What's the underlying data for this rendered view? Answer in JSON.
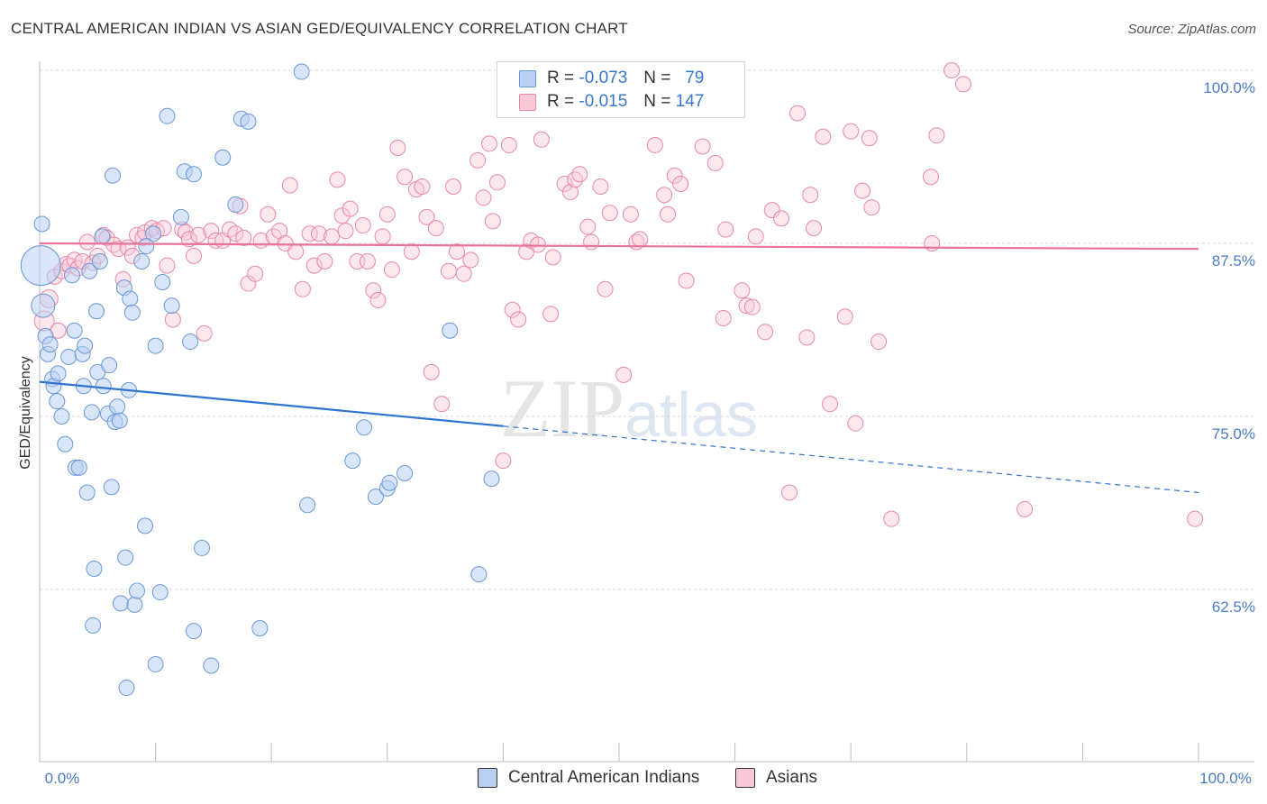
{
  "title": "CENTRAL AMERICAN INDIAN VS ASIAN GED/EQUIVALENCY CORRELATION CHART",
  "source": "Source: ZipAtlas.com",
  "watermark": {
    "main": "ZIP",
    "sub": "atlas"
  },
  "legend": {
    "rows": [
      {
        "r_label": "R =",
        "r_value": "-0.073",
        "n_label": "N =",
        "n_value": "79"
      },
      {
        "r_label": "R =",
        "r_value": "-0.015",
        "n_label": "N =",
        "n_value": "147"
      }
    ]
  },
  "bottom_legend": [
    "Central American Indians",
    "Asians"
  ],
  "colors": {
    "blue": "#4a86d8",
    "blue_fill": "#b9d0f3",
    "pink": "#e8749a",
    "pink_fill": "#f9c9d8",
    "tick": "#4a7cc9"
  },
  "chart_data": {
    "type": "scatter",
    "title": "CENTRAL AMERICAN INDIAN VS ASIAN GED/EQUIVALENCY CORRELATION CHART",
    "xlabel": "",
    "ylabel": "GED/Equivalency",
    "xlim": [
      0,
      100
    ],
    "ylim": [
      49.5,
      101.5
    ],
    "x_tick_labels": [
      "0.0%",
      "100.0%"
    ],
    "y_ticks": [
      62.5,
      75.0,
      87.5,
      100.0
    ],
    "y_tick_labels": [
      "62.5%",
      "75.0%",
      "87.5%",
      "100.0%"
    ],
    "grid": true,
    "series": [
      {
        "name": "Central American Indians",
        "r": -0.073,
        "n": 79,
        "trend": {
          "x0": 0,
          "y0": 77.5,
          "x1": 100,
          "y1": 69.5,
          "solid_until": 40
        },
        "points": [
          [
            0.1,
            85.9
          ],
          [
            0.3,
            83.0
          ],
          [
            0.5,
            80.8
          ],
          [
            0.7,
            79.5
          ],
          [
            0.9,
            80.2
          ],
          [
            1.1,
            77.7
          ],
          [
            1.2,
            77.2
          ],
          [
            1.6,
            78.1
          ],
          [
            1.5,
            76.1
          ],
          [
            1.9,
            75.0
          ],
          [
            2.2,
            73.0
          ],
          [
            2.5,
            79.3
          ],
          [
            2.8,
            85.2
          ],
          [
            3.0,
            81.2
          ],
          [
            3.1,
            71.3
          ],
          [
            3.4,
            71.3
          ],
          [
            3.7,
            79.5
          ],
          [
            3.8,
            77.2
          ],
          [
            3.9,
            80.1
          ],
          [
            4.1,
            69.5
          ],
          [
            4.3,
            85.5
          ],
          [
            4.5,
            75.3
          ],
          [
            4.6,
            59.9
          ],
          [
            4.7,
            64.0
          ],
          [
            4.9,
            82.6
          ],
          [
            5.0,
            78.2
          ],
          [
            5.2,
            86.2
          ],
          [
            5.4,
            88.0
          ],
          [
            5.5,
            77.2
          ],
          [
            5.9,
            75.2
          ],
          [
            6.0,
            78.7
          ],
          [
            6.2,
            69.9
          ],
          [
            6.5,
            74.6
          ],
          [
            6.7,
            75.7
          ],
          [
            6.9,
            74.7
          ],
          [
            7.0,
            61.5
          ],
          [
            7.3,
            84.3
          ],
          [
            7.4,
            64.8
          ],
          [
            7.5,
            55.4
          ],
          [
            7.7,
            76.9
          ],
          [
            7.8,
            83.5
          ],
          [
            8.0,
            82.5
          ],
          [
            8.2,
            61.4
          ],
          [
            8.4,
            62.4
          ],
          [
            8.8,
            86.2
          ],
          [
            9.1,
            67.1
          ],
          [
            9.8,
            88.2
          ],
          [
            10.0,
            80.1
          ],
          [
            10.0,
            57.1
          ],
          [
            10.4,
            62.3
          ],
          [
            10.6,
            84.7
          ],
          [
            11.0,
            96.7
          ],
          [
            11.4,
            83.0
          ],
          [
            12.2,
            89.4
          ],
          [
            12.5,
            92.7
          ],
          [
            13.0,
            80.4
          ],
          [
            13.3,
            92.5
          ],
          [
            14.0,
            65.5
          ],
          [
            14.8,
            57.0
          ],
          [
            15.8,
            93.7
          ],
          [
            16.9,
            90.3
          ],
          [
            17.4,
            96.5
          ],
          [
            18.0,
            96.3
          ],
          [
            19.0,
            59.7
          ],
          [
            22.6,
            99.9
          ],
          [
            23.1,
            68.6
          ],
          [
            27.0,
            71.8
          ],
          [
            28.0,
            74.2
          ],
          [
            29.0,
            69.2
          ],
          [
            30.0,
            69.8
          ],
          [
            30.2,
            70.2
          ],
          [
            31.5,
            70.9
          ],
          [
            35.4,
            81.2
          ],
          [
            37.9,
            63.6
          ],
          [
            39.0,
            70.5
          ],
          [
            0.2,
            88.9
          ],
          [
            13.3,
            59.5
          ],
          [
            6.3,
            92.4
          ],
          [
            9.2,
            87.3
          ]
        ]
      },
      {
        "name": "Asians",
        "r": -0.015,
        "n": 147,
        "trend": {
          "x0": 0,
          "y0": 87.5,
          "x1": 100,
          "y1": 87.1
        },
        "points": [
          [
            0.4,
            81.9
          ],
          [
            0.8,
            83.5
          ],
          [
            1.3,
            85.1
          ],
          [
            1.6,
            81.2
          ],
          [
            1.9,
            85.5
          ],
          [
            2.3,
            86.0
          ],
          [
            2.6,
            85.9
          ],
          [
            3.0,
            86.3
          ],
          [
            3.3,
            85.7
          ],
          [
            3.7,
            86.2
          ],
          [
            4.1,
            87.6
          ],
          [
            4.6,
            86.1
          ],
          [
            5.0,
            86.6
          ],
          [
            5.5,
            88.1
          ],
          [
            5.8,
            87.9
          ],
          [
            6.4,
            87.4
          ],
          [
            6.8,
            87.1
          ],
          [
            7.2,
            84.9
          ],
          [
            7.6,
            87.2
          ],
          [
            8.0,
            86.6
          ],
          [
            8.4,
            88.1
          ],
          [
            8.9,
            87.9
          ],
          [
            9.1,
            88.3
          ],
          [
            9.7,
            88.6
          ],
          [
            10.1,
            88.4
          ],
          [
            10.7,
            88.6
          ],
          [
            11.0,
            85.9
          ],
          [
            11.5,
            82.0
          ],
          [
            12.3,
            88.5
          ],
          [
            12.6,
            88.3
          ],
          [
            12.9,
            87.8
          ],
          [
            13.3,
            86.6
          ],
          [
            13.7,
            88.1
          ],
          [
            14.2,
            81.0
          ],
          [
            14.8,
            88.4
          ],
          [
            15.2,
            87.7
          ],
          [
            15.8,
            87.7
          ],
          [
            16.4,
            88.5
          ],
          [
            16.9,
            88.2
          ],
          [
            17.3,
            90.2
          ],
          [
            17.6,
            87.9
          ],
          [
            18.0,
            84.6
          ],
          [
            18.6,
            85.3
          ],
          [
            19.1,
            87.7
          ],
          [
            19.7,
            89.6
          ],
          [
            20.2,
            88.0
          ],
          [
            20.7,
            88.4
          ],
          [
            21.2,
            87.5
          ],
          [
            21.6,
            91.7
          ],
          [
            22.1,
            86.9
          ],
          [
            22.7,
            84.2
          ],
          [
            23.3,
            88.2
          ],
          [
            23.7,
            85.9
          ],
          [
            24.1,
            88.2
          ],
          [
            24.6,
            86.2
          ],
          [
            25.2,
            88.0
          ],
          [
            25.7,
            92.1
          ],
          [
            26.1,
            89.5
          ],
          [
            26.4,
            88.4
          ],
          [
            26.8,
            90.0
          ],
          [
            27.4,
            86.2
          ],
          [
            27.9,
            88.8
          ],
          [
            28.3,
            86.2
          ],
          [
            28.8,
            84.1
          ],
          [
            29.2,
            83.4
          ],
          [
            29.6,
            88.0
          ],
          [
            30.0,
            89.6
          ],
          [
            30.4,
            85.6
          ],
          [
            30.9,
            94.4
          ],
          [
            31.5,
            92.3
          ],
          [
            32.1,
            86.9
          ],
          [
            32.5,
            91.4
          ],
          [
            33.0,
            91.6
          ],
          [
            33.4,
            89.4
          ],
          [
            33.8,
            78.2
          ],
          [
            34.2,
            88.6
          ],
          [
            34.7,
            75.9
          ],
          [
            35.3,
            85.5
          ],
          [
            35.7,
            91.6
          ],
          [
            36.0,
            86.9
          ],
          [
            36.6,
            85.3
          ],
          [
            37.2,
            86.3
          ],
          [
            37.8,
            93.5
          ],
          [
            38.3,
            90.8
          ],
          [
            38.8,
            94.7
          ],
          [
            39.1,
            89.1
          ],
          [
            39.5,
            91.9
          ],
          [
            40.0,
            71.8
          ],
          [
            40.5,
            94.6
          ],
          [
            40.8,
            82.7
          ],
          [
            41.3,
            82.0
          ],
          [
            42.0,
            86.9
          ],
          [
            42.4,
            87.7
          ],
          [
            43.0,
            87.4
          ],
          [
            43.3,
            95.0
          ],
          [
            44.1,
            82.4
          ],
          [
            44.3,
            86.5
          ],
          [
            45.3,
            91.8
          ],
          [
            45.8,
            91.2
          ],
          [
            46.2,
            92.1
          ],
          [
            46.6,
            92.5
          ],
          [
            47.3,
            88.7
          ],
          [
            47.6,
            87.6
          ],
          [
            48.4,
            91.6
          ],
          [
            48.8,
            84.2
          ],
          [
            49.2,
            89.7
          ],
          [
            50.4,
            78.0
          ],
          [
            51.0,
            89.6
          ],
          [
            51.5,
            87.6
          ],
          [
            51.8,
            87.8
          ],
          [
            53.1,
            94.6
          ],
          [
            53.9,
            91.0
          ],
          [
            54.2,
            89.6
          ],
          [
            54.8,
            92.4
          ],
          [
            55.3,
            91.8
          ],
          [
            55.8,
            84.8
          ],
          [
            57.2,
            94.5
          ],
          [
            58.3,
            93.3
          ],
          [
            59.0,
            82.1
          ],
          [
            59.2,
            88.5
          ],
          [
            60.6,
            84.1
          ],
          [
            61.0,
            83.0
          ],
          [
            61.5,
            82.9
          ],
          [
            61.8,
            88.0
          ],
          [
            62.6,
            81.1
          ],
          [
            63.2,
            89.9
          ],
          [
            64.0,
            89.3
          ],
          [
            64.7,
            69.5
          ],
          [
            65.4,
            96.9
          ],
          [
            66.2,
            80.7
          ],
          [
            66.5,
            91.0
          ],
          [
            66.8,
            88.6
          ],
          [
            67.6,
            95.2
          ],
          [
            68.2,
            75.9
          ],
          [
            69.5,
            82.2
          ],
          [
            70.0,
            95.6
          ],
          [
            70.4,
            74.5
          ],
          [
            71.0,
            91.3
          ],
          [
            71.6,
            95.1
          ],
          [
            71.8,
            90.1
          ],
          [
            72.4,
            80.4
          ],
          [
            73.5,
            67.6
          ],
          [
            76.9,
            92.3
          ],
          [
            77.0,
            87.5
          ],
          [
            77.4,
            95.3
          ],
          [
            78.7,
            100.0
          ],
          [
            79.7,
            99.0
          ],
          [
            85.0,
            68.3
          ],
          [
            99.7,
            67.6
          ]
        ]
      }
    ]
  }
}
